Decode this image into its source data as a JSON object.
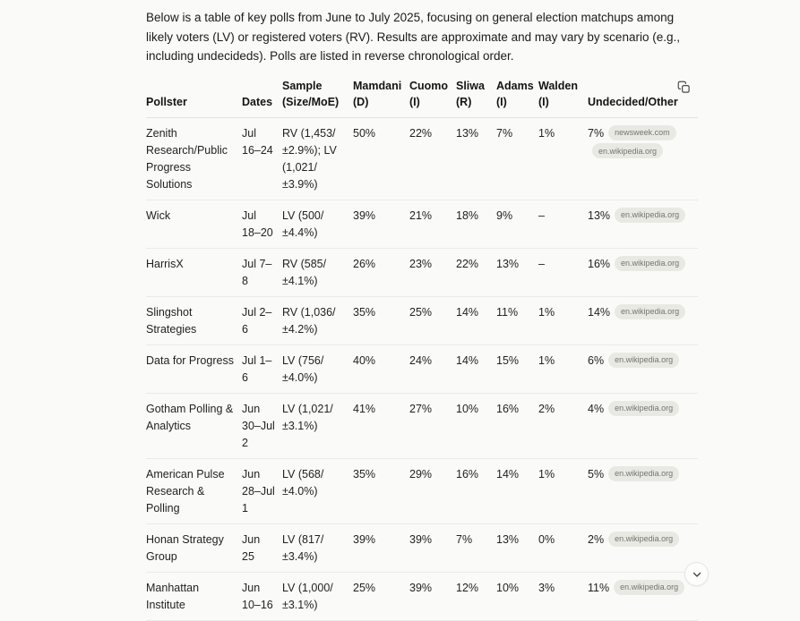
{
  "intro": "Below is a table of key polls from June to July 2025, focusing on general election matchups among likely voters (LV) or registered voters (RV). Results are approximate and may vary by scenario (e.g., including undecideds). Polls are listed in reverse chronological order.",
  "chart_data": {
    "type": "table",
    "title": "Key polls June to July 2025 — general election matchups",
    "columns": [
      "Pollster",
      "Dates",
      "Sample (Size/MoE)",
      "Mamdani (D)",
      "Cuomo (I)",
      "Sliwa (R)",
      "Adams (I)",
      "Walden (I)",
      "Undecided/Other"
    ],
    "rows": [
      {
        "pollster": "Zenith Research/Public Progress Solutions",
        "dates": "Jul 16–24",
        "sample": "RV (1,453/±2.9%); LV (1,021/±3.9%)",
        "mamdani": "50%",
        "cuomo": "22%",
        "sliwa": "13%",
        "adams": "7%",
        "walden": "1%",
        "undecided": "7%",
        "citations": [
          "newsweek.com",
          "en.wikipedia.org"
        ]
      },
      {
        "pollster": "Wick",
        "dates": "Jul 18–20",
        "sample": "LV (500/±4.4%)",
        "mamdani": "39%",
        "cuomo": "21%",
        "sliwa": "18%",
        "adams": "9%",
        "walden": "–",
        "undecided": "13%",
        "citations": [
          "en.wikipedia.org"
        ]
      },
      {
        "pollster": "HarrisX",
        "dates": "Jul 7–8",
        "sample": "RV (585/±4.1%)",
        "mamdani": "26%",
        "cuomo": "23%",
        "sliwa": "22%",
        "adams": "13%",
        "walden": "–",
        "undecided": "16%",
        "citations": [
          "en.wikipedia.org"
        ]
      },
      {
        "pollster": "Slingshot Strategies",
        "dates": "Jul 2–6",
        "sample": "RV (1,036/±4.2%)",
        "mamdani": "35%",
        "cuomo": "25%",
        "sliwa": "14%",
        "adams": "11%",
        "walden": "1%",
        "undecided": "14%",
        "citations": [
          "en.wikipedia.org"
        ]
      },
      {
        "pollster": "Data for Progress",
        "dates": "Jul 1–6",
        "sample": "LV (756/±4.0%)",
        "mamdani": "40%",
        "cuomo": "24%",
        "sliwa": "14%",
        "adams": "15%",
        "walden": "1%",
        "undecided": "6%",
        "citations": [
          "en.wikipedia.org"
        ]
      },
      {
        "pollster": "Gotham Polling & Analytics",
        "dates": "Jun 30–Jul 2",
        "sample": "LV (1,021/±3.1%)",
        "mamdani": "41%",
        "cuomo": "27%",
        "sliwa": "10%",
        "adams": "16%",
        "walden": "2%",
        "undecided": "4%",
        "citations": [
          "en.wikipedia.org"
        ]
      },
      {
        "pollster": "American Pulse Research & Polling",
        "dates": "Jun 28–Jul 1",
        "sample": "LV (568/±4.0%)",
        "mamdani": "35%",
        "cuomo": "29%",
        "sliwa": "16%",
        "adams": "14%",
        "walden": "1%",
        "undecided": "5%",
        "citations": [
          "en.wikipedia.org"
        ]
      },
      {
        "pollster": "Honan Strategy Group",
        "dates": "Jun 25",
        "sample": "LV (817/±3.4%)",
        "mamdani": "39%",
        "cuomo": "39%",
        "sliwa": "7%",
        "adams": "13%",
        "walden": "0%",
        "undecided": "2%",
        "citations": [
          "en.wikipedia.org"
        ]
      },
      {
        "pollster": "Manhattan Institute",
        "dates": "Jun 10–16",
        "sample": "LV (1,000/±3.1%)",
        "mamdani": "25%",
        "cuomo": "39%",
        "sliwa": "12%",
        "adams": "10%",
        "walden": "3%",
        "undecided": "11%",
        "citations": [
          "en.wikipedia.org"
        ]
      }
    ]
  },
  "icons": {
    "copy": "copy-icon",
    "scroll_down": "chevron-down-icon"
  },
  "colors": {
    "background": "#fafaf8",
    "text": "#1b1b18",
    "row_border": "#eaeae6",
    "header_border": "#e3e3df",
    "badge_bg": "#e9e9e4",
    "badge_text": "#75756e"
  }
}
